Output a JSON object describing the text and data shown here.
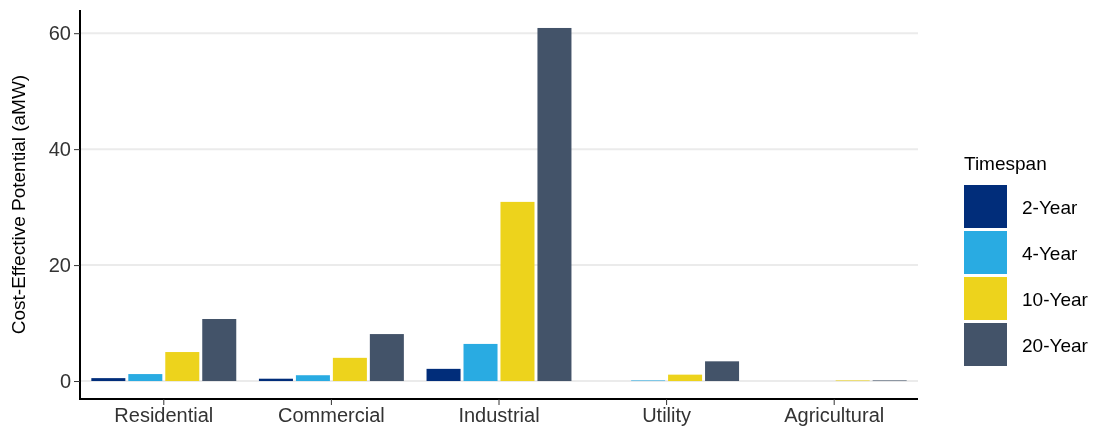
{
  "chart_data": {
    "type": "bar",
    "ylabel": "Cost-Effective Potential (aMW)",
    "legend_title": "Timespan",
    "categories": [
      "Residential",
      "Commercial",
      "Industrial",
      "Utility",
      "Agricultural"
    ],
    "series": [
      {
        "name": "2-Year",
        "color": "#012d7a",
        "values": [
          0.5,
          0.4,
          2.1,
          0,
          0
        ]
      },
      {
        "name": "4-Year",
        "color": "#29abe2",
        "values": [
          1.2,
          1.0,
          6.4,
          0.1,
          0
        ]
      },
      {
        "name": "10-Year",
        "color": "#edd31c",
        "values": [
          5.0,
          4.0,
          30.9,
          1.1,
          0.1
        ]
      },
      {
        "name": "20-Year",
        "color": "#435369",
        "values": [
          10.7,
          8.1,
          60.9,
          3.4,
          0.1
        ]
      }
    ],
    "ylim": [
      -3.1,
      64
    ],
    "yticks": [
      0,
      20,
      40,
      60
    ],
    "grid": "y",
    "legend": "right"
  }
}
